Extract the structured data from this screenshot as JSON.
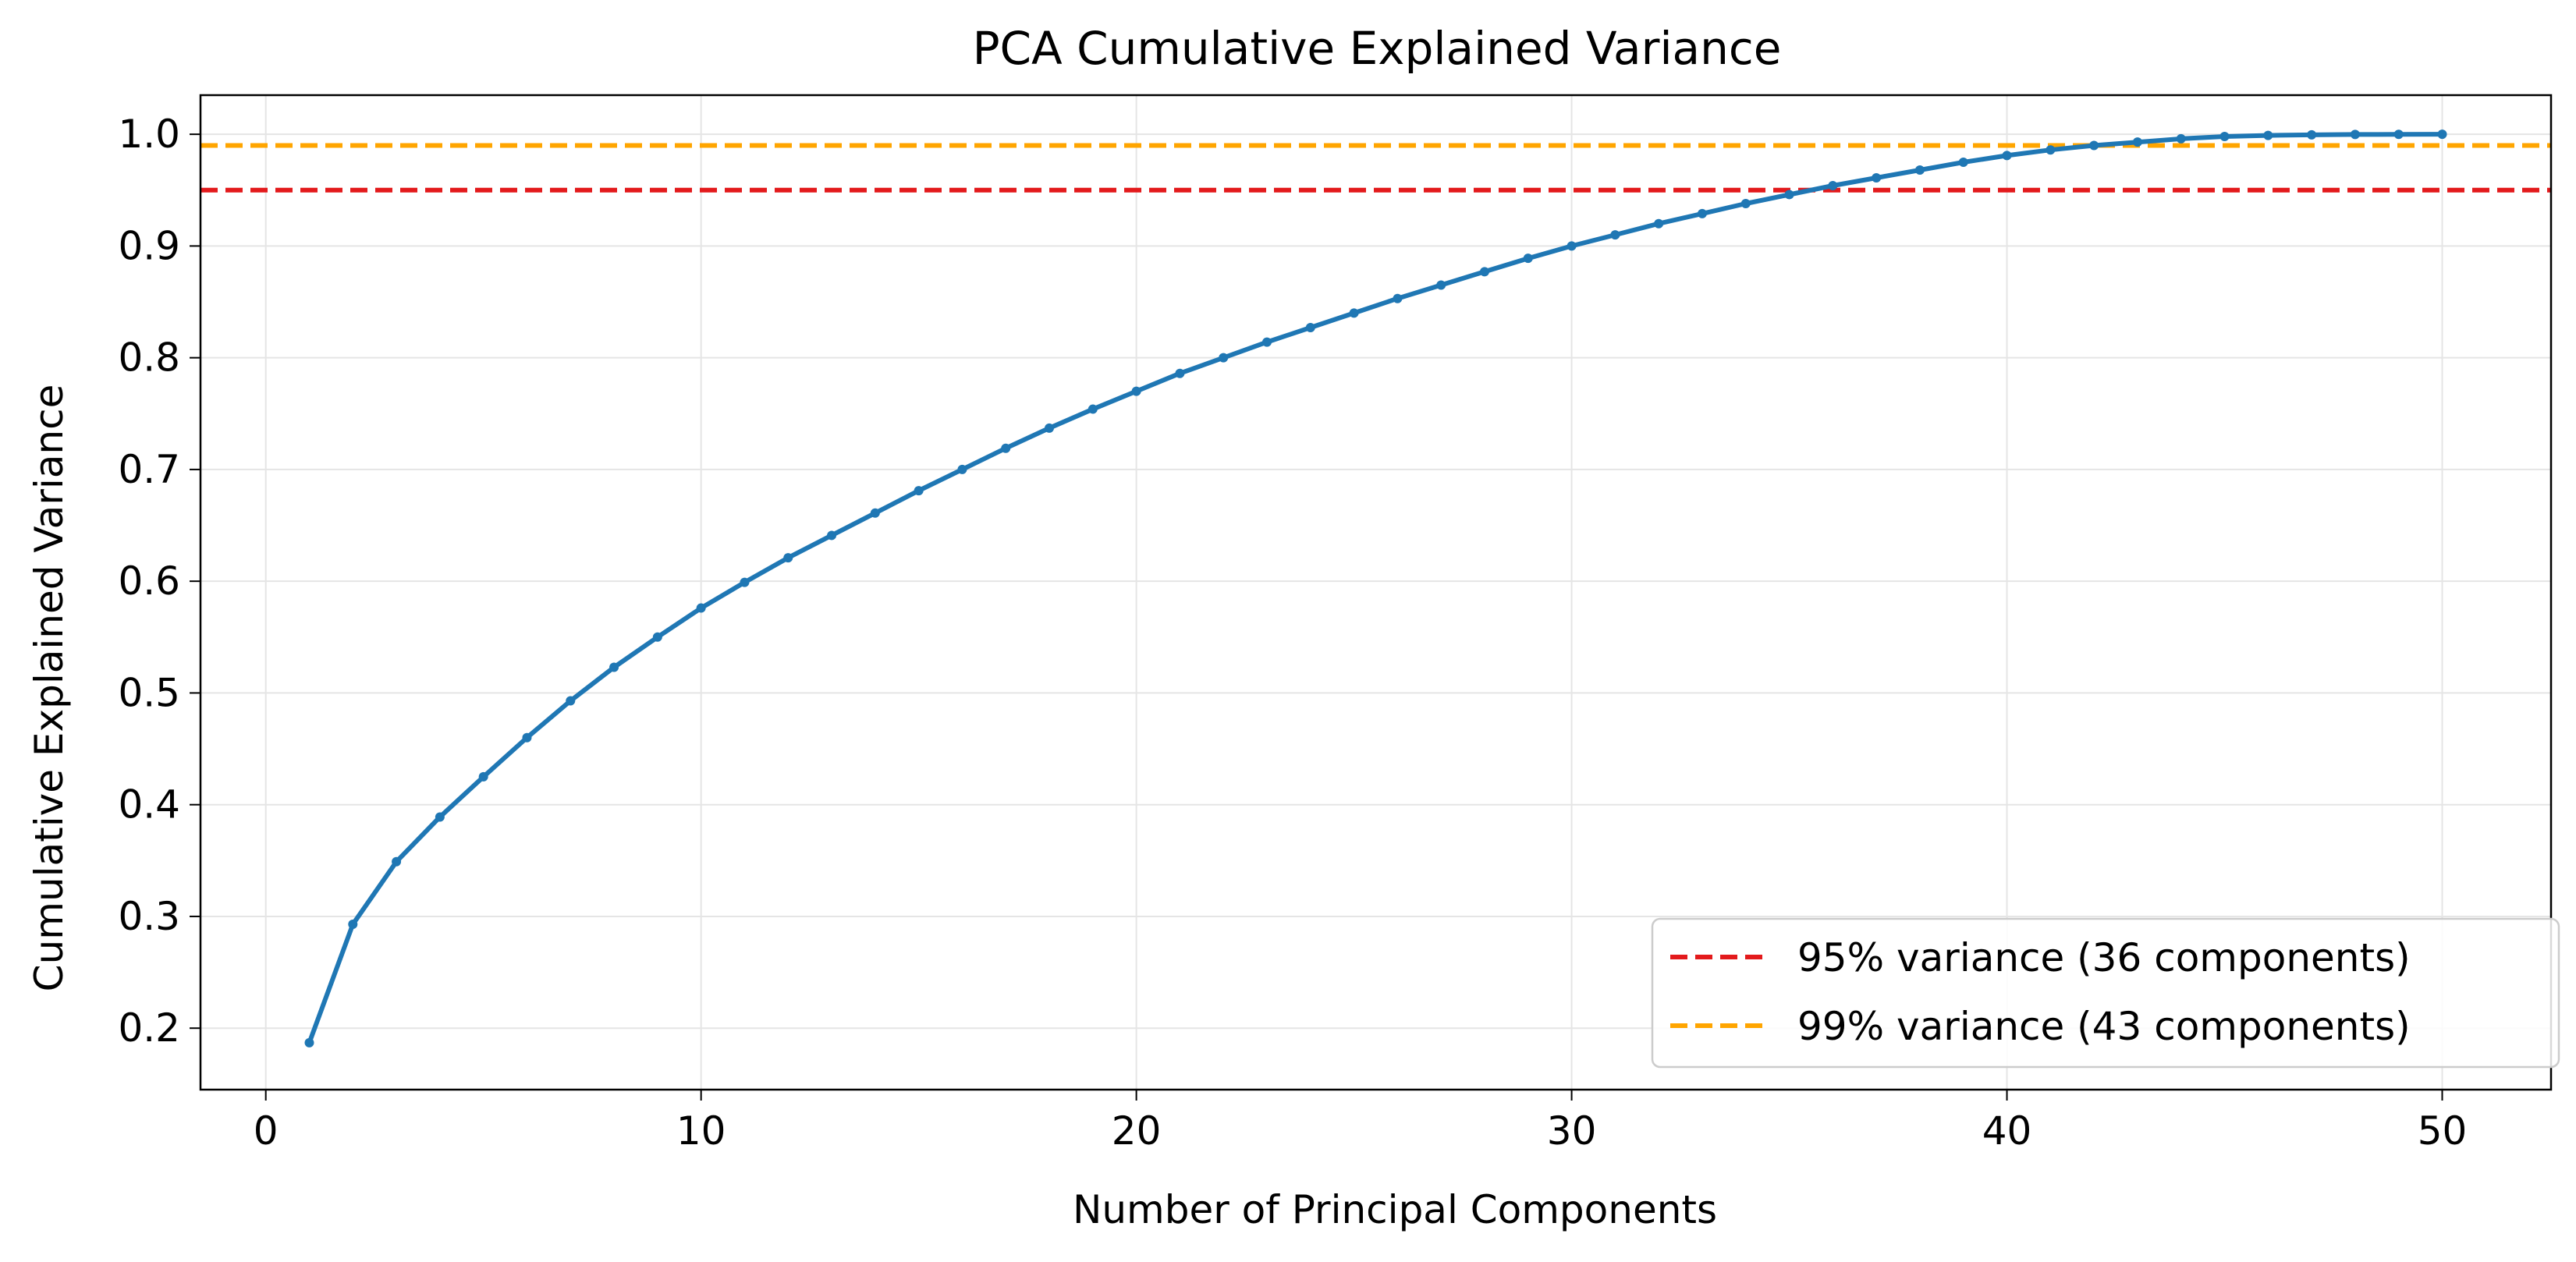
{
  "chart_data": {
    "type": "line",
    "title": "PCA Cumulative Explained Variance",
    "xlabel": "Number of Principal Components",
    "ylabel": "Cumulative Explained Variance",
    "xlim": [
      -1.5,
      52.5
    ],
    "ylim": [
      0.145,
      1.035
    ],
    "xticks": [
      0,
      10,
      20,
      30,
      40,
      50
    ],
    "yticks": [
      0.2,
      0.3,
      0.4,
      0.5,
      0.6,
      0.7,
      0.8,
      0.9,
      1.0
    ],
    "xtick_labels": [
      "0",
      "10",
      "20",
      "30",
      "40",
      "50"
    ],
    "ytick_labels": [
      "0.2",
      "0.3",
      "0.4",
      "0.5",
      "0.6",
      "0.7",
      "0.8",
      "0.9",
      "1.0"
    ],
    "grid": true,
    "legend_position": "lower-right",
    "series": [
      {
        "color": "#1f77b4",
        "marker": "dot",
        "x": [
          1,
          2,
          3,
          4,
          5,
          6,
          7,
          8,
          9,
          10,
          11,
          12,
          13,
          14,
          15,
          16,
          17,
          18,
          19,
          20,
          21,
          22,
          23,
          24,
          25,
          26,
          27,
          28,
          29,
          30,
          31,
          32,
          33,
          34,
          35,
          36,
          37,
          38,
          39,
          40,
          41,
          42,
          43,
          44,
          45,
          46,
          47,
          48,
          49,
          50
        ],
        "y": [
          0.187,
          0.293,
          0.349,
          0.389,
          0.425,
          0.46,
          0.493,
          0.523,
          0.55,
          0.576,
          0.599,
          0.621,
          0.641,
          0.661,
          0.681,
          0.7,
          0.719,
          0.737,
          0.754,
          0.77,
          0.786,
          0.8,
          0.814,
          0.827,
          0.84,
          0.853,
          0.865,
          0.877,
          0.889,
          0.9,
          0.91,
          0.92,
          0.929,
          0.938,
          0.946,
          0.954,
          0.961,
          0.968,
          0.975,
          0.981,
          0.986,
          0.99,
          0.993,
          0.996,
          0.998,
          0.999,
          0.9995,
          0.9998,
          0.9999,
          1.0
        ]
      }
    ],
    "reference_lines": [
      {
        "name": "95% variance (36 components)",
        "y": 0.95,
        "color": "#e31a1c",
        "style": "dashed"
      },
      {
        "name": "99% variance (43 components)",
        "y": 0.99,
        "color": "#ffa500",
        "style": "dashed"
      }
    ]
  }
}
